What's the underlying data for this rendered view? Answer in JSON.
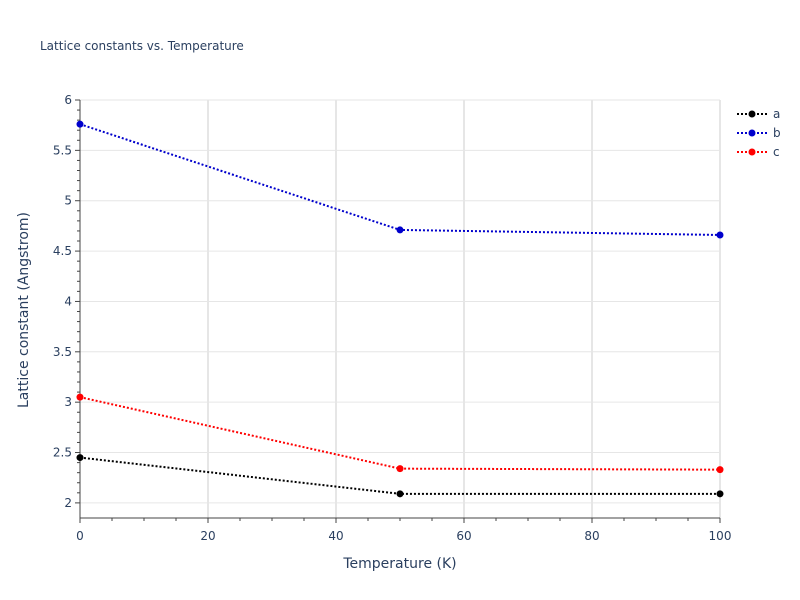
{
  "chart_data": {
    "type": "line",
    "title": "Lattice constants vs. Temperature",
    "xlabel": "Temperature (K)",
    "ylabel": "Lattice constant (Angstrom)",
    "xlim": [
      0,
      100
    ],
    "ylim": [
      1.85,
      6.0
    ],
    "xticks": [
      "0",
      "20",
      "40",
      "60",
      "80",
      "100"
    ],
    "yticks": [
      "2",
      "2.5",
      "3",
      "3.5",
      "4",
      "4.5",
      "5",
      "5.5",
      "6"
    ],
    "grid": true,
    "legend_position": "top-right",
    "x": [
      0,
      50,
      100
    ],
    "series": [
      {
        "name": "a",
        "color": "#000000",
        "values": [
          2.45,
          2.09,
          2.09
        ]
      },
      {
        "name": "b",
        "color": "#0000cc",
        "values": [
          5.76,
          4.71,
          4.66
        ]
      },
      {
        "name": "c",
        "color": "#ff0000",
        "values": [
          3.05,
          2.34,
          2.33
        ]
      }
    ]
  }
}
